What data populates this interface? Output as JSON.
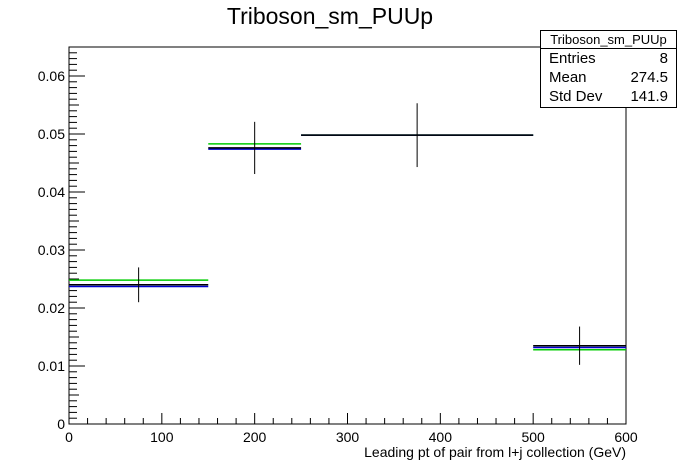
{
  "chart_data": {
    "type": "histogram",
    "title": "Triboson_sm_PUUp",
    "xlabel": "Leading pt of pair from l+j collection (GeV)",
    "ylabel": "",
    "xlim": [
      0,
      600
    ],
    "ylim": [
      0,
      0.065
    ],
    "x_ticks": [
      0,
      100,
      200,
      300,
      400,
      500,
      600
    ],
    "y_ticks": [
      0,
      0.01,
      0.02,
      0.03,
      0.04,
      0.05,
      0.06
    ],
    "x_tick_labels": [
      "0",
      "100",
      "200",
      "300",
      "400",
      "500",
      "600"
    ],
    "y_tick_labels": [
      "0",
      "0.01",
      "0.02",
      "0.03",
      "0.04",
      "0.05",
      "0.06"
    ],
    "bins": [
      {
        "x_low": 0,
        "x_high": 150,
        "x_center": 75,
        "value": 0.024,
        "error": 0.003
      },
      {
        "x_low": 150,
        "x_high": 250,
        "x_center": 200,
        "value": 0.0476,
        "error": 0.0045
      },
      {
        "x_low": 250,
        "x_high": 500,
        "x_center": 375,
        "value": 0.0498,
        "error": 0.0055
      },
      {
        "x_low": 500,
        "x_high": 600,
        "x_center": 550,
        "value": 0.0135,
        "error": 0.0033
      }
    ],
    "series": [
      {
        "name": "",
        "color": "#000000",
        "values": [
          0.024,
          0.0476,
          0.0498,
          0.0135
        ]
      },
      {
        "name": "",
        "color": "#0000cc",
        "values": [
          0.0237,
          0.0474,
          0.0498,
          0.0132
        ]
      },
      {
        "name": "",
        "color": "#00cc00",
        "values": [
          0.0248,
          0.0483,
          0.0498,
          0.0128
        ]
      }
    ],
    "grid": false,
    "legend": "none"
  },
  "stats": {
    "title": "Triboson_sm_PUUp",
    "rows": [
      {
        "label": "Entries",
        "value": "8"
      },
      {
        "label": "Mean",
        "value": "274.5"
      },
      {
        "label": "Std Dev",
        "value": "141.9"
      }
    ]
  }
}
